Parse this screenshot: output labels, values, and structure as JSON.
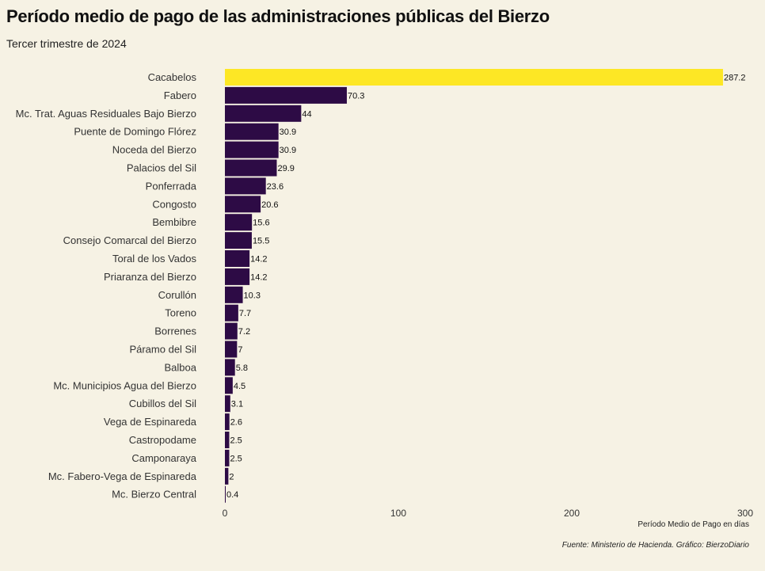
{
  "title": "Período medio de pago de las administraciones públicas del Bierzo",
  "subtitle": "Tercer trimestre de 2024",
  "caption": "Fuente: Ministerio de Hacienda. Gráfico: BierzoDiario",
  "chart_data": {
    "type": "bar",
    "orientation": "horizontal",
    "title": "Período medio de pago de las administraciones públicas del Bierzo",
    "subtitle": "Tercer trimestre de 2024",
    "xlabel": "Período Medio de Pago en días",
    "ylabel": "",
    "xlim": [
      0,
      300
    ],
    "xticks": [
      0,
      100,
      200,
      300
    ],
    "grid": false,
    "categories": [
      "Cacabelos",
      "Fabero",
      "Mc. Trat. Aguas Residuales Bajo Bierzo",
      "Puente de Domingo Flórez",
      "Noceda del Bierzo",
      "Palacios del Sil",
      "Ponferrada",
      "Congosto",
      "Bembibre",
      "Consejo Comarcal del Bierzo",
      "Toral de los Vados",
      "Priaranza del Bierzo",
      "Corullón",
      "Toreno",
      "Borrenes",
      "Páramo del Sil",
      "Balboa",
      "Mc. Municipios Agua del Bierzo",
      "Cubillos del Sil",
      "Vega de Espinareda",
      "Castropodame",
      "Camponaraya",
      "Mc. Fabero-Vega de Espinareda",
      "Mc. Bierzo Central"
    ],
    "values": [
      287.2,
      70.3,
      44,
      30.9,
      30.9,
      29.9,
      23.6,
      20.6,
      15.6,
      15.5,
      14.2,
      14.2,
      10.3,
      7.7,
      7.2,
      7,
      5.8,
      4.5,
      3.1,
      2.6,
      2.5,
      2.5,
      2,
      0.4
    ],
    "highlight_color": "#fde725",
    "bar_color": "#2d0b45"
  }
}
